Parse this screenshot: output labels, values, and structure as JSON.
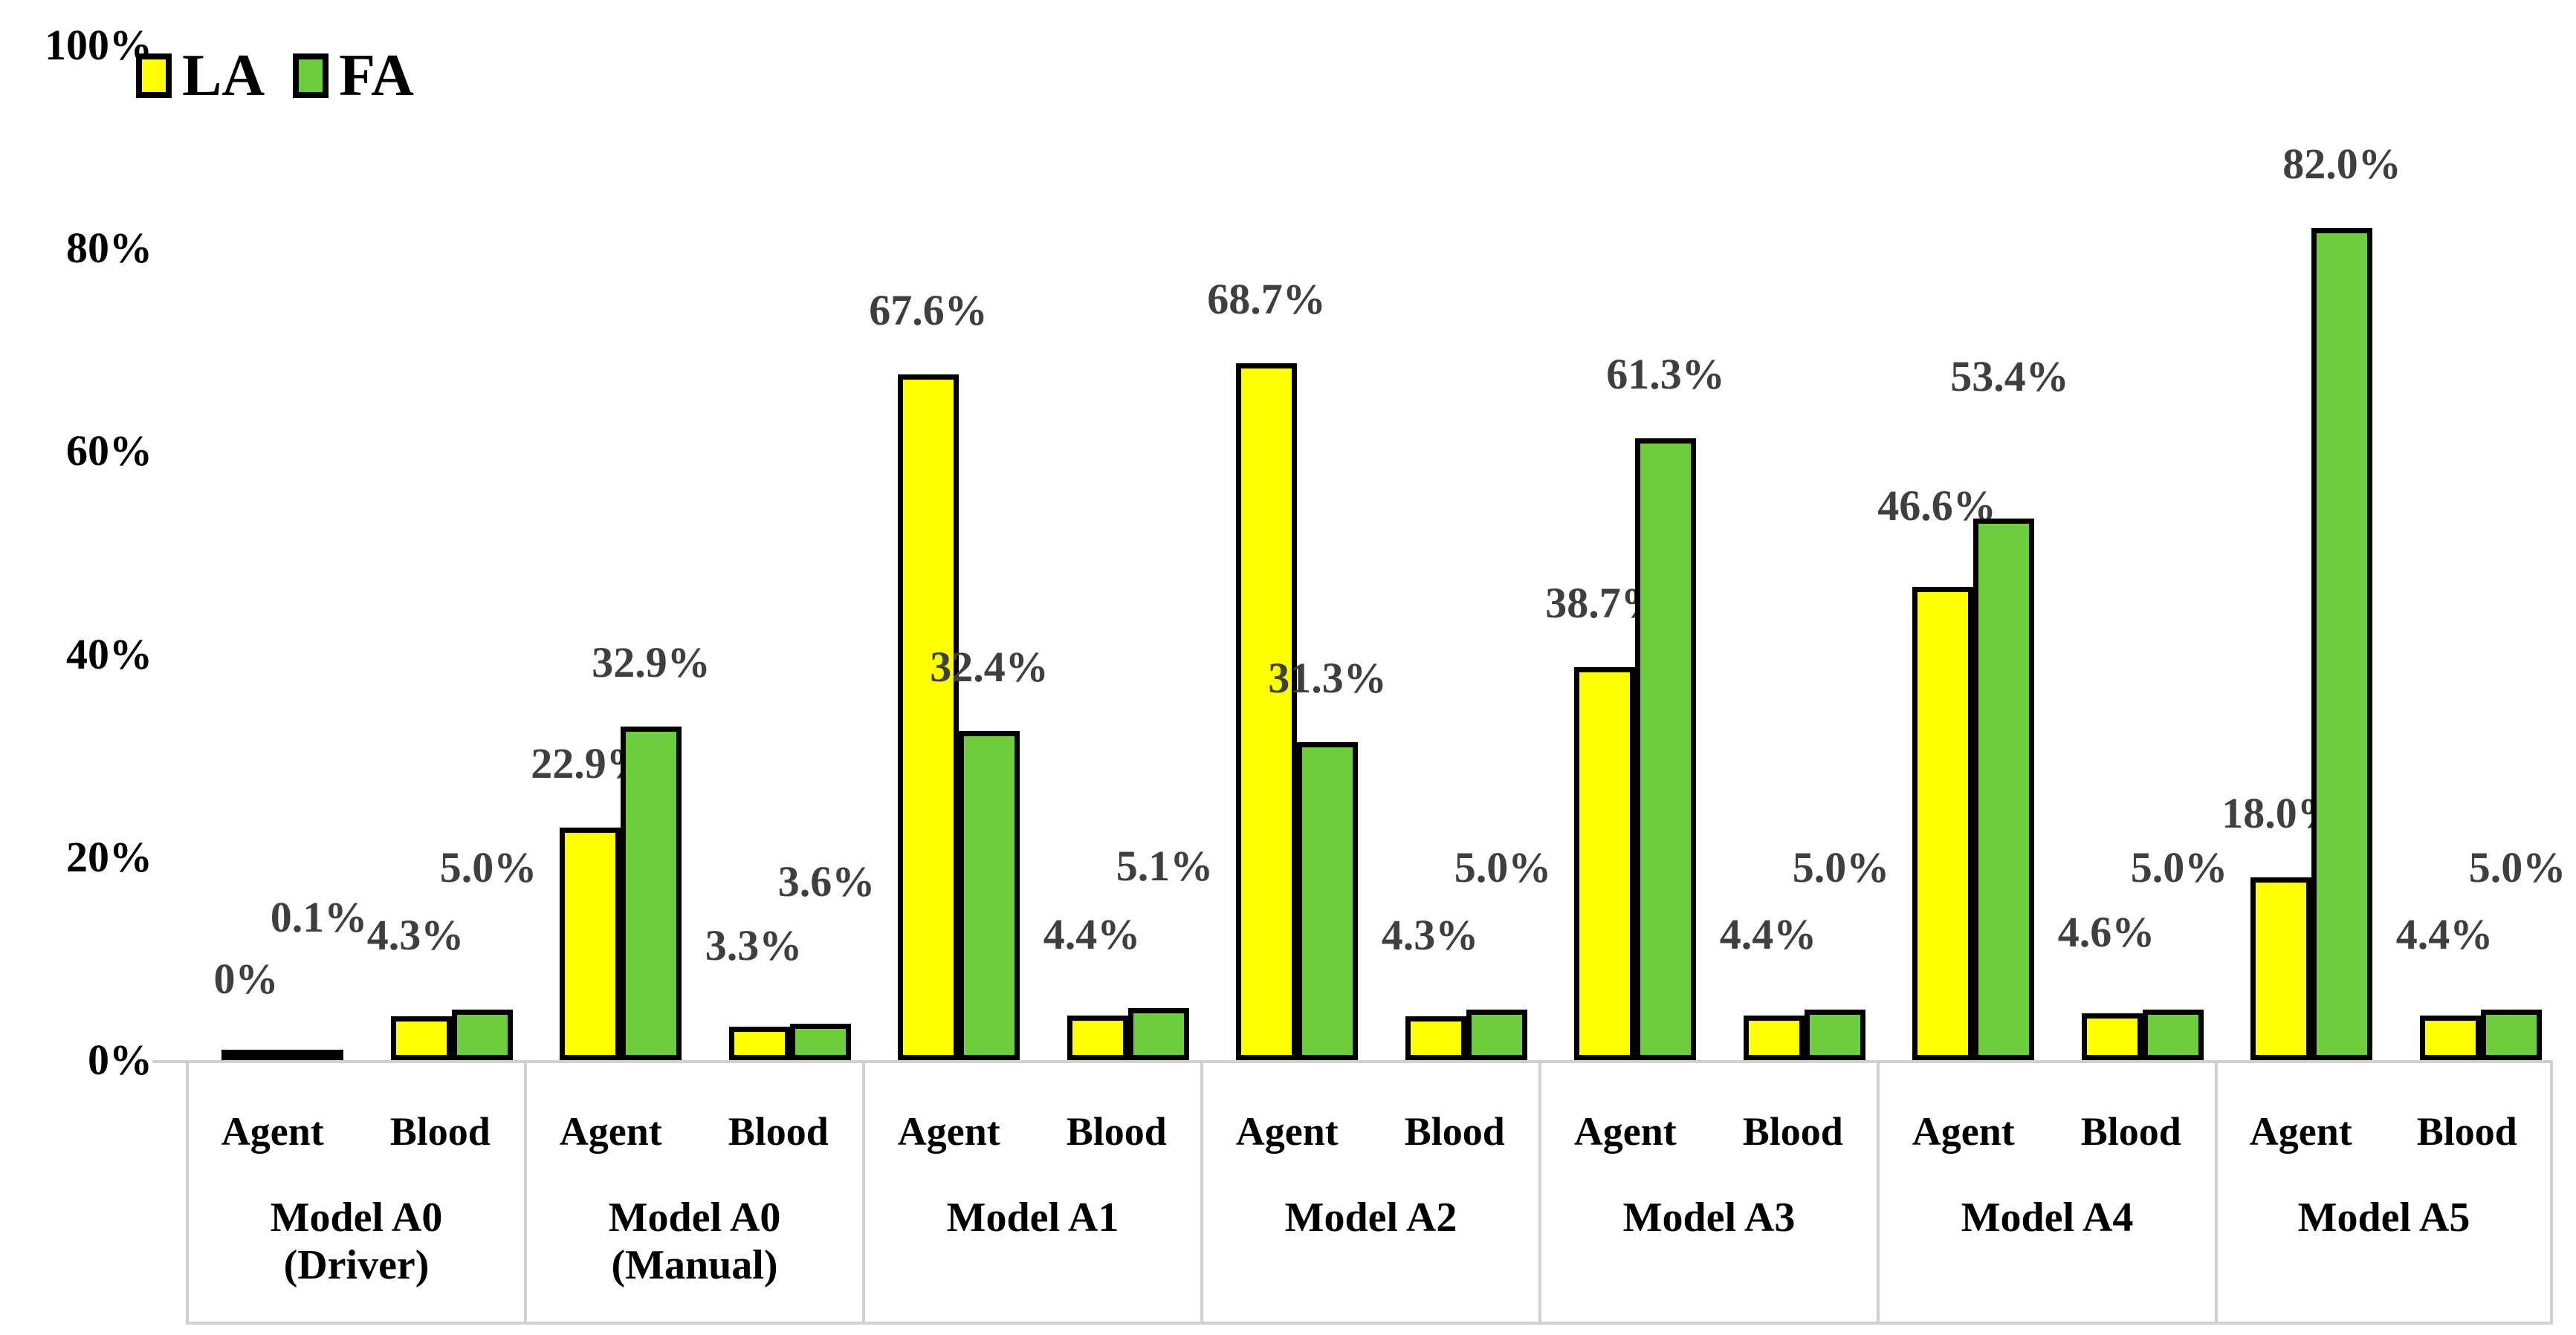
{
  "chart_data": {
    "type": "bar",
    "title": "",
    "xlabel": "",
    "ylabel": "",
    "ylim": [
      0,
      100
    ],
    "grid": false,
    "legend_position": "top-left",
    "yticks": [
      "0%",
      "20%",
      "40%",
      "60%",
      "80%",
      "100%"
    ],
    "ytick_values": [
      0,
      20,
      40,
      60,
      80,
      100
    ],
    "legend": [
      {
        "name": "LA",
        "color": "#FFFF00"
      },
      {
        "name": "FA",
        "color": "#6CCE3A"
      }
    ],
    "colors": {
      "la_fill": "#FFFF00",
      "fa_fill": "#6CCE3A",
      "bar_border": "#000000",
      "data_label": "#3f3f3f",
      "axis_box_border": "#d0d0d0",
      "text": "#000000",
      "background": "#ffffff"
    },
    "groups": [
      {
        "model": "Model A0",
        "model_line2": "(Driver)",
        "pairs": [
          {
            "category": "Agent",
            "la": 0.0,
            "fa": 0.1,
            "la_label": "0%",
            "fa_label": "0.1%"
          },
          {
            "category": "Blood",
            "la": 4.3,
            "fa": 5.0,
            "la_label": "4.3%",
            "fa_label": "5.0%"
          }
        ]
      },
      {
        "model": "Model A0",
        "model_line2": "(Manual)",
        "pairs": [
          {
            "category": "Agent",
            "la": 22.9,
            "fa": 32.9,
            "la_label": "22.9%",
            "fa_label": "32.9%"
          },
          {
            "category": "Blood",
            "la": 3.3,
            "fa": 3.6,
            "la_label": "3.3%",
            "fa_label": "3.6%"
          }
        ]
      },
      {
        "model": "Model A1",
        "model_line2": "",
        "pairs": [
          {
            "category": "Agent",
            "la": 67.6,
            "fa": 32.4,
            "la_label": "67.6%",
            "fa_label": "32.4%"
          },
          {
            "category": "Blood",
            "la": 4.4,
            "fa": 5.1,
            "la_label": "4.4%",
            "fa_label": "5.1%"
          }
        ]
      },
      {
        "model": "Model A2",
        "model_line2": "",
        "pairs": [
          {
            "category": "Agent",
            "la": 68.7,
            "fa": 31.3,
            "la_label": "68.7%",
            "fa_label": "31.3%"
          },
          {
            "category": "Blood",
            "la": 4.3,
            "fa": 5.0,
            "la_label": "4.3%",
            "fa_label": "5.0%"
          }
        ]
      },
      {
        "model": "Model A3",
        "model_line2": "",
        "pairs": [
          {
            "category": "Agent",
            "la": 38.7,
            "fa": 61.3,
            "la_label": "38.7%",
            "fa_label": "61.3%"
          },
          {
            "category": "Blood",
            "la": 4.4,
            "fa": 5.0,
            "la_label": "4.4%",
            "fa_label": "5.0%"
          }
        ]
      },
      {
        "model": "Model A4",
        "model_line2": "",
        "pairs": [
          {
            "category": "Agent",
            "la": 46.6,
            "fa": 53.4,
            "la_label": "46.6%",
            "fa_label": "53.4%"
          },
          {
            "category": "Blood",
            "la": 4.6,
            "fa": 5.0,
            "la_label": "4.6%",
            "fa_label": "5.0%"
          }
        ]
      },
      {
        "model": "Model A5",
        "model_line2": "",
        "pairs": [
          {
            "category": "Agent",
            "la": 18.0,
            "fa": 82.0,
            "la_label": "18.0%",
            "fa_label": "82.0%"
          },
          {
            "category": "Blood",
            "la": 4.4,
            "fa": 5.0,
            "la_label": "4.4%",
            "fa_label": "5.0%"
          }
        ]
      }
    ]
  }
}
